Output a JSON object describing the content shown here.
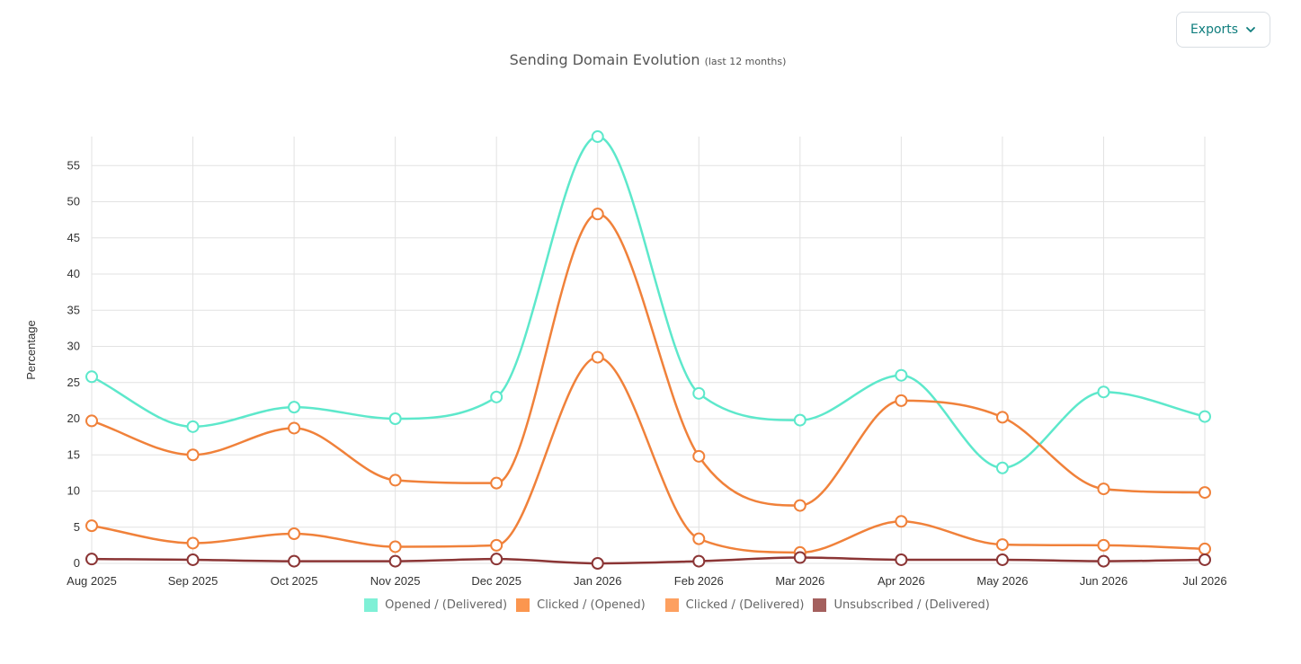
{
  "toolbar": {
    "exports_label": "Exports"
  },
  "chart_data": {
    "type": "line",
    "title": "Sending Domain Evolution",
    "subtitle": "(last 12 months)",
    "xlabel": "",
    "ylabel": "Percentage",
    "ylim": [
      0,
      59
    ],
    "yticks": [
      0,
      5,
      10,
      15,
      20,
      25,
      30,
      35,
      40,
      45,
      50,
      55
    ],
    "grid": true,
    "legend_position": "bottom",
    "categories": [
      "Aug 2025",
      "Sep 2025",
      "Oct 2025",
      "Nov 2025",
      "Dec 2025",
      "Jan 2026",
      "Feb 2026",
      "Mar 2026",
      "Apr 2026",
      "May 2026",
      "Jun 2026",
      "Jul 2026"
    ],
    "series": [
      {
        "name": "Opened / (Delivered)",
        "color": "#5de8cb",
        "legend_color": "#7ff0d6",
        "values": [
          25.8,
          18.9,
          21.6,
          20.0,
          23.0,
          59.0,
          23.5,
          19.8,
          26.0,
          13.2,
          23.7,
          20.3
        ]
      },
      {
        "name": "Clicked / (Opened)",
        "color": "#f0813a",
        "legend_color": "#fb964f",
        "values": [
          19.7,
          15.0,
          18.7,
          11.5,
          11.1,
          48.3,
          14.8,
          8.0,
          22.5,
          20.2,
          10.3,
          9.8
        ]
      },
      {
        "name": "Clicked / (Delivered)",
        "color": "#f0813a",
        "legend_color": "#fda060",
        "values": [
          5.2,
          2.8,
          4.1,
          2.3,
          2.5,
          28.5,
          3.4,
          1.5,
          5.8,
          2.6,
          2.5,
          2.0
        ]
      },
      {
        "name": "Unsubscribed / (Delivered)",
        "color": "#8b3535",
        "legend_color": "#a4605e",
        "values": [
          0.6,
          0.5,
          0.3,
          0.3,
          0.6,
          0.0,
          0.3,
          0.8,
          0.5,
          0.5,
          0.3,
          0.5
        ]
      }
    ]
  }
}
